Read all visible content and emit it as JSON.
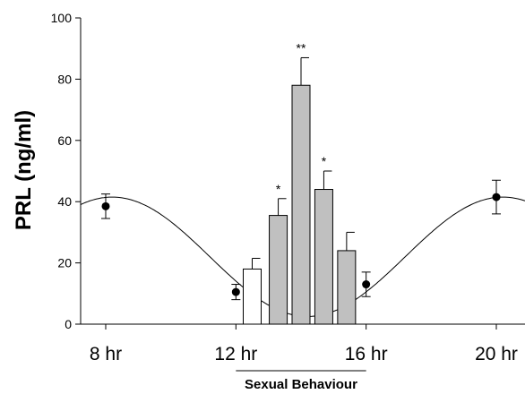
{
  "chart_data": {
    "type": "bar",
    "ylabel": "PRL (ng/ml)",
    "xlabel": "",
    "ylim": [
      0,
      100
    ],
    "yticks": [
      0,
      20,
      40,
      60,
      80,
      100
    ],
    "xlim": [
      8,
      20
    ],
    "xticks": [
      {
        "x": 8,
        "label": "8 hr"
      },
      {
        "x": 12,
        "label": "12 hr"
      },
      {
        "x": 16,
        "label": "16 hr"
      },
      {
        "x": 20,
        "label": "20 hr"
      }
    ],
    "bracket": {
      "from": 12,
      "to": 16,
      "label": "Sexual Behaviour"
    },
    "bars": [
      {
        "x": 12.5,
        "value": 18,
        "error": 3.5,
        "fill": "#ffffff",
        "sig": ""
      },
      {
        "x": 13.3,
        "value": 35.5,
        "error": 5.5,
        "fill": "#c0c0c0",
        "sig": "*"
      },
      {
        "x": 14.0,
        "value": 78,
        "error": 9,
        "fill": "#c0c0c0",
        "sig": "**"
      },
      {
        "x": 14.7,
        "value": 44,
        "error": 6,
        "fill": "#c0c0c0",
        "sig": "*"
      },
      {
        "x": 15.4,
        "value": 24,
        "error": 6,
        "fill": "#c0c0c0",
        "sig": ""
      }
    ],
    "points": [
      {
        "x": 8,
        "y": 38.5,
        "error": 4
      },
      {
        "x": 12,
        "y": 10.5,
        "error": 2.5
      },
      {
        "x": 16,
        "y": 13,
        "error": 4
      },
      {
        "x": 20,
        "y": 41.5,
        "error": 5.5
      }
    ],
    "curve": {
      "type": "cosine",
      "period_hr": 12,
      "peak_hr": 20.2,
      "mean": 22,
      "amplitude": 19.5
    }
  }
}
